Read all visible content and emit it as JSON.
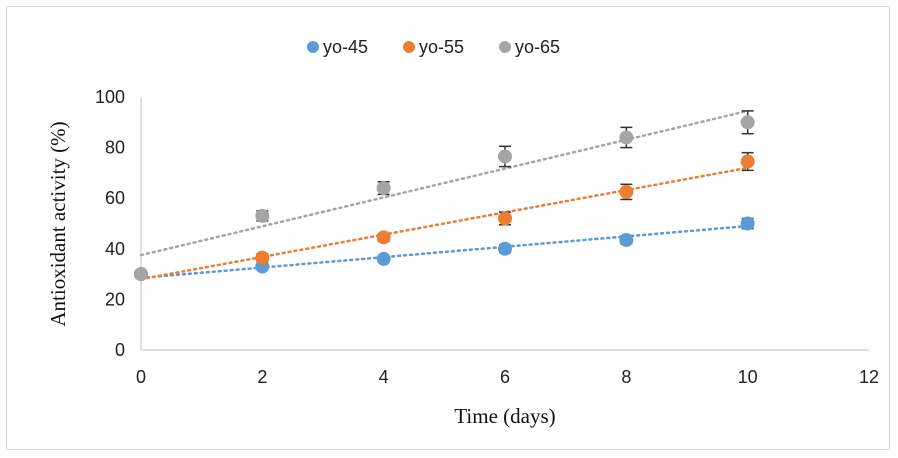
{
  "chart_data": {
    "type": "scatter",
    "title": "",
    "xlabel": "Time (days)",
    "ylabel": "Antioxidant activity (%)",
    "xlim": [
      0,
      12
    ],
    "ylim": [
      0,
      100
    ],
    "xticks": [
      0,
      2,
      4,
      6,
      8,
      10,
      12
    ],
    "yticks": [
      0,
      20,
      40,
      60,
      80,
      100
    ],
    "grid": false,
    "legend_position": "top-center",
    "x": [
      0,
      2,
      4,
      6,
      8,
      10
    ],
    "series": [
      {
        "name": "yo-45",
        "color": "#5b9bd5",
        "values": [
          30,
          33,
          36,
          40,
          43.5,
          50
        ],
        "error": [
          1,
          1,
          1,
          1.5,
          1.5,
          2
        ],
        "trendline": {
          "type": "linear",
          "start": [
            0,
            28.5
          ],
          "end": [
            10,
            49
          ]
        }
      },
      {
        "name": "yo-55",
        "color": "#ed7d31",
        "values": [
          30,
          36.5,
          44.5,
          52,
          62.5,
          74.5
        ],
        "error": [
          1,
          1.5,
          1.5,
          2.5,
          3,
          3.5
        ],
        "trendline": {
          "type": "linear",
          "start": [
            0,
            28
          ],
          "end": [
            10,
            72
          ]
        }
      },
      {
        "name": "yo-65",
        "color": "#a5a5a5",
        "values": [
          30,
          53,
          64,
          76.5,
          84,
          90
        ],
        "error": [
          1,
          2,
          2.5,
          4,
          4,
          4.5
        ],
        "trendline": {
          "type": "linear",
          "start": [
            0,
            37.5
          ],
          "end": [
            10,
            94.5
          ]
        }
      }
    ]
  }
}
